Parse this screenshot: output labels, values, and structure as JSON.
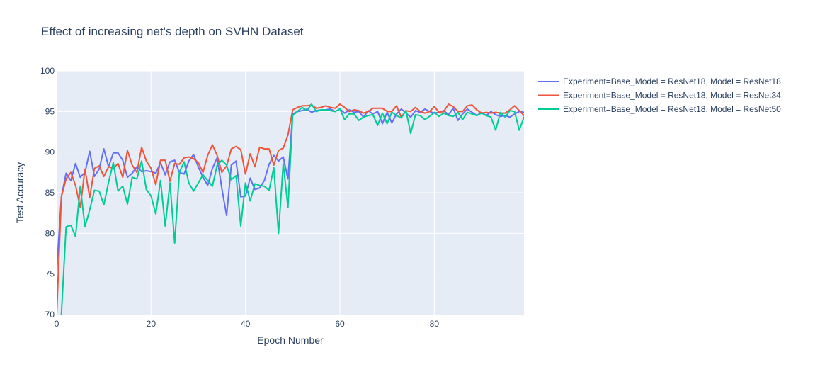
{
  "chart_data": {
    "type": "line",
    "title": "Effect of increasing net's depth on SVHN Dataset",
    "xlabel": "Epoch Number",
    "ylabel": "Test Accuracy",
    "xlim": [
      0,
      99
    ],
    "ylim": [
      70,
      100
    ],
    "xticks": [
      0,
      20,
      40,
      60,
      80
    ],
    "yticks": [
      70,
      75,
      80,
      85,
      90,
      95,
      100
    ],
    "grid": true,
    "legend_position": "top-right",
    "background_color": "#E5ECF6",
    "series": [
      {
        "name": "Experiment=Base_Model = ResNet18, Model = ResNet18",
        "color": "#636EFA",
        "values": [
          75.3,
          84.5,
          87.4,
          86.5,
          88.6,
          86.9,
          87.5,
          90.1,
          87.0,
          87.9,
          90.4,
          88.2,
          89.9,
          89.9,
          89.0,
          86.9,
          87.4,
          88.2,
          87.6,
          87.7,
          87.6,
          87.4,
          88.7,
          87.2,
          88.8,
          89.0,
          87.5,
          87.3,
          88.9,
          89.7,
          88.2,
          86.9,
          85.9,
          88.0,
          89.3,
          85.5,
          82.2,
          88.4,
          88.9,
          84.5,
          84.6,
          86.8,
          85.4,
          85.6,
          86.5,
          88.5,
          89.6,
          88.9,
          89.4,
          86.7,
          94.7,
          95.0,
          95.1,
          95.3,
          94.9,
          95.1,
          95.2,
          95.2,
          95.3,
          95.0,
          95.3,
          94.8,
          95.2,
          94.9,
          95.0,
          94.3,
          95.1,
          94.7,
          95.0,
          93.5,
          94.9,
          93.6,
          94.7,
          95.3,
          94.8,
          94.3,
          95.1,
          94.9,
          95.3,
          95.0,
          94.8,
          94.9,
          95.1,
          94.6,
          95.4,
          93.9,
          94.7,
          95.3,
          94.9,
          94.5,
          94.9,
          94.5,
          95.0,
          94.6,
          94.4,
          94.5,
          94.3,
          94.7,
          95.0,
          94.9
        ],
        "values_tail": [
          94.5
        ]
      },
      {
        "name": "Experiment=Base_Model = ResNet18, Model = ResNet34",
        "color": "#EF553B",
        "values": [
          69.9,
          84.5,
          86.7,
          87.5,
          85.9,
          83.2,
          87.9,
          84.4,
          88.0,
          88.3,
          87.0,
          88.2,
          88.0,
          88.6,
          86.9,
          90.2,
          88.4,
          87.5,
          90.6,
          88.9,
          88.0,
          86.0,
          89.0,
          89.0,
          86.4,
          88.6,
          88.5,
          89.3,
          89.4,
          89.2,
          88.7,
          87.5,
          89.6,
          90.9,
          89.6,
          87.5,
          88.3,
          90.4,
          90.7,
          90.3,
          87.3,
          89.8,
          88.2,
          90.6,
          90.4,
          90.4,
          88.4,
          90.2,
          90.5,
          92.1,
          95.2,
          95.5,
          95.7,
          95.7,
          95.8,
          95.4,
          95.5,
          95.7,
          95.5,
          95.4,
          95.9,
          95.5,
          95.0,
          95.2,
          95.1,
          94.8,
          95.0,
          95.4,
          95.4,
          95.4,
          95.0,
          95.0,
          95.7,
          94.3,
          95.1,
          95.0,
          95.5,
          95.0,
          94.8,
          95.0,
          95.6,
          94.9,
          95.0,
          95.9,
          95.6,
          95.0,
          95.0,
          95.7,
          95.8,
          95.2,
          94.8,
          94.9,
          94.8,
          94.9,
          94.8,
          94.8,
          95.2,
          95.7,
          95.1,
          94.5
        ],
        "values_tail": [
          95.1
        ]
      },
      {
        "name": "Experiment=Base_Model = ResNet18, Model = ResNet50",
        "color": "#00CC96",
        "values": [
          61.0,
          70.0,
          80.8,
          81.0,
          79.6,
          85.8,
          80.8,
          82.9,
          85.3,
          85.2,
          83.5,
          86.3,
          88.7,
          85.2,
          85.8,
          83.6,
          86.9,
          86.7,
          88.9,
          85.4,
          84.6,
          82.4,
          86.5,
          80.9,
          86.2,
          78.8,
          87.5,
          88.8,
          86.2,
          85.2,
          86.2,
          87.2,
          86.5,
          85.8,
          88.4,
          89.0,
          88.4,
          86.6,
          87.1,
          80.9,
          86.2,
          84.0,
          86.1,
          85.9,
          85.8,
          85.3,
          88.1,
          80.0,
          88.6,
          83.2,
          94.5,
          95.0,
          95.5,
          95.1,
          95.9,
          95.0,
          95.2,
          95.2,
          95.1,
          95.0,
          95.3,
          94.0,
          94.7,
          94.7,
          93.9,
          94.3,
          94.5,
          94.6,
          93.3,
          94.8,
          93.5,
          94.9,
          94.5,
          94.2,
          95.1,
          92.3,
          94.6,
          94.5,
          94.0,
          94.4,
          94.9,
          94.4,
          94.8,
          94.5,
          94.4,
          94.9,
          94.0,
          94.9,
          94.7,
          94.5,
          94.8,
          94.5,
          94.3,
          92.7,
          94.9,
          94.3,
          95.1,
          95.0,
          92.7,
          94.3
        ],
        "values_tail": [
          95.1
        ]
      }
    ]
  }
}
